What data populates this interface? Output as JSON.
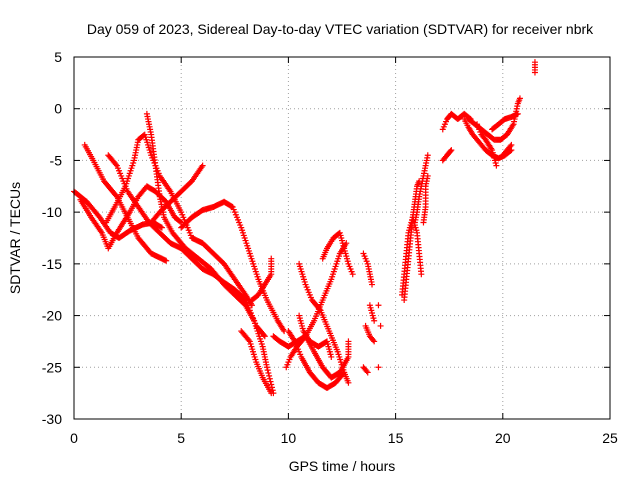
{
  "chart_data": {
    "type": "scatter",
    "title": "Day 059 of 2023, Sidereal Day-to-day VTEC variation (SDTVAR) for receiver nbrk",
    "xlabel": "GPS time / hours",
    "ylabel": "SDTVAR / TECUs",
    "xlim": [
      0,
      25
    ],
    "ylim": [
      -30,
      5
    ],
    "xticks": [
      0,
      5,
      10,
      15,
      20,
      25
    ],
    "yticks": [
      5,
      0,
      -5,
      -10,
      -15,
      -20,
      -25,
      -30
    ],
    "grid": true,
    "marker_color": "#ff0000",
    "tracks": [
      {
        "points": [
          [
            0.0,
            -8.0
          ],
          [
            0.6,
            -9.0
          ],
          [
            1.2,
            -10.5
          ],
          [
            1.7,
            -12.0
          ],
          [
            2.1,
            -12.5
          ],
          [
            2.6,
            -11.8
          ],
          [
            3.2,
            -11.2
          ],
          [
            3.7,
            -11.0
          ],
          [
            4.1,
            -11.5
          ]
        ]
      },
      {
        "points": [
          [
            0.3,
            -8.8
          ],
          [
            0.8,
            -10.5
          ],
          [
            1.3,
            -12.0
          ],
          [
            1.6,
            -13.5
          ],
          [
            2.0,
            -12.0
          ],
          [
            2.6,
            -10.0
          ],
          [
            3.0,
            -8.5
          ],
          [
            3.4,
            -7.5
          ],
          [
            3.8,
            -8.0
          ],
          [
            4.3,
            -9.0
          ],
          [
            4.7,
            -10.5
          ],
          [
            5.0,
            -11.0
          ]
        ]
      },
      {
        "points": [
          [
            0.5,
            -3.5
          ],
          [
            0.9,
            -5.0
          ],
          [
            1.4,
            -7.0
          ],
          [
            2.0,
            -8.5
          ],
          [
            2.5,
            -10.5
          ],
          [
            3.0,
            -12.5
          ],
          [
            3.6,
            -14.0
          ],
          [
            4.3,
            -14.7
          ]
        ]
      },
      {
        "points": [
          [
            1.6,
            -4.5
          ],
          [
            2.0,
            -5.5
          ],
          [
            2.5,
            -8.0
          ],
          [
            3.0,
            -9.5
          ],
          [
            3.5,
            -11.0
          ],
          [
            4.0,
            -12.0
          ],
          [
            4.5,
            -13.0
          ],
          [
            5.0,
            -13.5
          ],
          [
            5.5,
            -14.5
          ],
          [
            6.0,
            -15.5
          ],
          [
            6.5,
            -16.0
          ],
          [
            7.0,
            -16.8
          ],
          [
            7.5,
            -17.5
          ],
          [
            8.0,
            -18.5
          ],
          [
            8.5,
            -21.0
          ],
          [
            8.9,
            -22.0
          ]
        ]
      },
      {
        "points": [
          [
            1.5,
            -11.0
          ],
          [
            1.9,
            -9.5
          ],
          [
            2.4,
            -7.5
          ],
          [
            2.8,
            -5.0
          ],
          [
            3.0,
            -3.0
          ],
          [
            3.3,
            -2.5
          ],
          [
            3.6,
            -4.5
          ],
          [
            4.0,
            -6.5
          ],
          [
            4.5,
            -8.0
          ],
          [
            5.0,
            -10.0
          ],
          [
            5.5,
            -12.5
          ],
          [
            6.0,
            -13.0
          ],
          [
            6.5,
            -14.0
          ],
          [
            7.0,
            -15.0
          ],
          [
            7.5,
            -16.5
          ],
          [
            8.0,
            -18.0
          ],
          [
            8.3,
            -19.0
          ]
        ]
      },
      {
        "points": [
          [
            3.4,
            -0.5
          ],
          [
            3.6,
            -2.5
          ],
          [
            3.8,
            -5.5
          ],
          [
            4.0,
            -8.5
          ],
          [
            4.2,
            -10.5
          ],
          [
            4.6,
            -12.0
          ],
          [
            5.2,
            -13.5
          ],
          [
            5.8,
            -14.5
          ],
          [
            6.4,
            -15.5
          ],
          [
            7.0,
            -17.0
          ],
          [
            7.5,
            -18.0
          ],
          [
            8.0,
            -19.0
          ],
          [
            8.4,
            -20.5
          ],
          [
            8.8,
            -23.0
          ],
          [
            9.0,
            -25.0
          ],
          [
            9.3,
            -27.5
          ]
        ]
      },
      {
        "points": [
          [
            3.6,
            -11.0
          ],
          [
            4.0,
            -10.0
          ],
          [
            4.5,
            -9.0
          ],
          [
            5.0,
            -8.0
          ],
          [
            5.5,
            -7.0
          ],
          [
            6.0,
            -5.5
          ]
        ]
      },
      {
        "points": [
          [
            5.0,
            -11.5
          ],
          [
            5.5,
            -10.5
          ],
          [
            6.0,
            -9.8
          ],
          [
            6.5,
            -9.5
          ],
          [
            7.0,
            -9.0
          ],
          [
            7.4,
            -9.5
          ],
          [
            7.8,
            -11.5
          ],
          [
            8.2,
            -14.0
          ],
          [
            8.6,
            -16.5
          ],
          [
            9.0,
            -18.5
          ],
          [
            9.5,
            -20.5
          ],
          [
            9.8,
            -21.5
          ]
        ]
      },
      {
        "points": [
          [
            7.8,
            -21.5
          ],
          [
            8.2,
            -22.5
          ],
          [
            8.5,
            -24.5
          ],
          [
            8.8,
            -26.0
          ],
          [
            9.2,
            -27.5
          ]
        ]
      },
      {
        "points": [
          [
            8.3,
            -18.5
          ],
          [
            8.6,
            -18.0
          ],
          [
            8.9,
            -17.0
          ],
          [
            9.2,
            -16.0
          ],
          [
            9.2,
            -14.5
          ]
        ]
      },
      {
        "points": [
          [
            9.3,
            -22.0
          ],
          [
            9.6,
            -22.5
          ],
          [
            10.0,
            -23.0
          ],
          [
            10.4,
            -22.5
          ],
          [
            10.8,
            -22.0
          ],
          [
            11.2,
            -23.5
          ],
          [
            11.6,
            -25.0
          ],
          [
            12.0,
            -26.0
          ],
          [
            12.4,
            -25.5
          ],
          [
            12.8,
            -24.0
          ],
          [
            12.8,
            -22.5
          ]
        ]
      },
      {
        "points": [
          [
            9.9,
            -25.0
          ],
          [
            10.1,
            -24.0
          ],
          [
            10.4,
            -23.0
          ],
          [
            10.8,
            -22.0
          ],
          [
            11.2,
            -20.5
          ],
          [
            11.6,
            -18.5
          ],
          [
            12.0,
            -16.5
          ],
          [
            12.4,
            -14.0
          ],
          [
            12.7,
            -13.0
          ]
        ]
      },
      {
        "points": [
          [
            10.0,
            -21.5
          ],
          [
            10.3,
            -22.5
          ],
          [
            10.6,
            -24.0
          ],
          [
            11.0,
            -25.5
          ],
          [
            11.4,
            -26.5
          ],
          [
            11.8,
            -27.0
          ],
          [
            12.2,
            -26.5
          ],
          [
            12.6,
            -25.5
          ],
          [
            12.8,
            -26.5
          ]
        ]
      },
      {
        "points": [
          [
            10.5,
            -15.0
          ],
          [
            10.8,
            -17.0
          ],
          [
            11.1,
            -18.5
          ],
          [
            11.5,
            -19.5
          ],
          [
            11.9,
            -21.5
          ],
          [
            12.3,
            -23.5
          ],
          [
            12.6,
            -25.5
          ]
        ]
      },
      {
        "points": [
          [
            11.6,
            -14.5
          ],
          [
            11.8,
            -13.5
          ],
          [
            12.1,
            -12.5
          ],
          [
            12.4,
            -12.0
          ],
          [
            12.6,
            -13.5
          ],
          [
            12.8,
            -15.0
          ],
          [
            13.0,
            -16.0
          ]
        ]
      },
      {
        "points": [
          [
            10.5,
            -20.0
          ],
          [
            10.7,
            -21.5
          ],
          [
            11.0,
            -22.5
          ],
          [
            11.4,
            -23.0
          ],
          [
            11.8,
            -22.5
          ],
          [
            12.0,
            -24.0
          ]
        ]
      },
      {
        "points": [
          [
            13.5,
            -14.0
          ],
          [
            13.7,
            -15.0
          ],
          [
            13.8,
            -16.0
          ],
          [
            13.9,
            -17.0
          ]
        ]
      },
      {
        "points": [
          [
            13.6,
            -21.0
          ],
          [
            13.8,
            -22.0
          ],
          [
            14.0,
            -22.5
          ]
        ]
      },
      {
        "points": [
          [
            13.5,
            -25.0
          ],
          [
            13.7,
            -25.5
          ]
        ]
      },
      {
        "points": [
          [
            13.8,
            -19.0
          ],
          [
            14.0,
            -20.5
          ]
        ]
      },
      {
        "points": [
          [
            14.2,
            -19.0
          ]
        ]
      },
      {
        "points": [
          [
            14.3,
            -21.0
          ]
        ]
      },
      {
        "points": [
          [
            14.2,
            -25.0
          ]
        ]
      },
      {
        "points": [
          [
            15.3,
            -18.0
          ],
          [
            15.4,
            -16.0
          ],
          [
            15.5,
            -14.0
          ],
          [
            15.6,
            -12.0
          ],
          [
            15.8,
            -10.5
          ],
          [
            16.0,
            -12.0
          ],
          [
            16.1,
            -14.0
          ],
          [
            16.2,
            -16.0
          ]
        ]
      },
      {
        "points": [
          [
            15.4,
            -18.5
          ],
          [
            15.5,
            -16.5
          ],
          [
            15.6,
            -14.5
          ],
          [
            15.7,
            -12.5
          ],
          [
            15.8,
            -10.5
          ],
          [
            15.9,
            -9.0
          ],
          [
            16.0,
            -7.5
          ],
          [
            16.1,
            -7.0
          ]
        ]
      },
      {
        "points": [
          [
            15.9,
            -11.0
          ],
          [
            16.0,
            -10.0
          ],
          [
            16.1,
            -8.5
          ],
          [
            16.3,
            -6.5
          ],
          [
            16.5,
            -4.5
          ]
        ]
      },
      {
        "points": [
          [
            16.3,
            -11.0
          ],
          [
            16.4,
            -9.5
          ],
          [
            16.4,
            -7.5
          ],
          [
            16.5,
            -6.5
          ]
        ]
      },
      {
        "points": [
          [
            17.2,
            -5.0
          ],
          [
            17.4,
            -4.5
          ],
          [
            17.6,
            -4.0
          ]
        ]
      },
      {
        "points": [
          [
            17.2,
            -2.0
          ],
          [
            17.4,
            -1.0
          ],
          [
            17.6,
            -0.5
          ],
          [
            17.9,
            -1.0
          ],
          [
            18.2,
            -0.5
          ],
          [
            18.5,
            -1.0
          ]
        ]
      },
      {
        "points": [
          [
            18.2,
            -1.0
          ],
          [
            18.4,
            -1.8
          ],
          [
            18.6,
            -2.5
          ],
          [
            18.8,
            -3.0
          ],
          [
            19.0,
            -3.5
          ],
          [
            19.2,
            -4.0
          ],
          [
            19.5,
            -4.5
          ],
          [
            19.8,
            -4.8
          ],
          [
            20.1,
            -4.5
          ],
          [
            20.4,
            -4.0
          ]
        ]
      },
      {
        "points": [
          [
            18.4,
            -1.0
          ],
          [
            18.7,
            -1.5
          ],
          [
            19.0,
            -2.0
          ],
          [
            19.3,
            -2.5
          ],
          [
            19.6,
            -3.0
          ],
          [
            19.9,
            -3.0
          ],
          [
            20.2,
            -2.5
          ],
          [
            20.5,
            -1.5
          ],
          [
            20.7,
            0.5
          ],
          [
            20.8,
            1.0
          ]
        ]
      },
      {
        "points": [
          [
            18.8,
            -1.5
          ],
          [
            19.0,
            -2.5
          ],
          [
            19.2,
            -3.0
          ],
          [
            19.5,
            -4.0
          ],
          [
            19.7,
            -5.5
          ]
        ]
      },
      {
        "points": [
          [
            19.5,
            -2.0
          ],
          [
            19.8,
            -1.5
          ],
          [
            20.1,
            -1.0
          ],
          [
            20.4,
            -0.8
          ],
          [
            20.7,
            -0.5
          ]
        ]
      },
      {
        "points": [
          [
            20.0,
            -4.5
          ],
          [
            20.2,
            -4.0
          ],
          [
            20.4,
            -3.5
          ]
        ]
      },
      {
        "points": [
          [
            21.5,
            4.5
          ],
          [
            21.5,
            4.0
          ],
          [
            21.5,
            3.5
          ]
        ]
      }
    ]
  }
}
